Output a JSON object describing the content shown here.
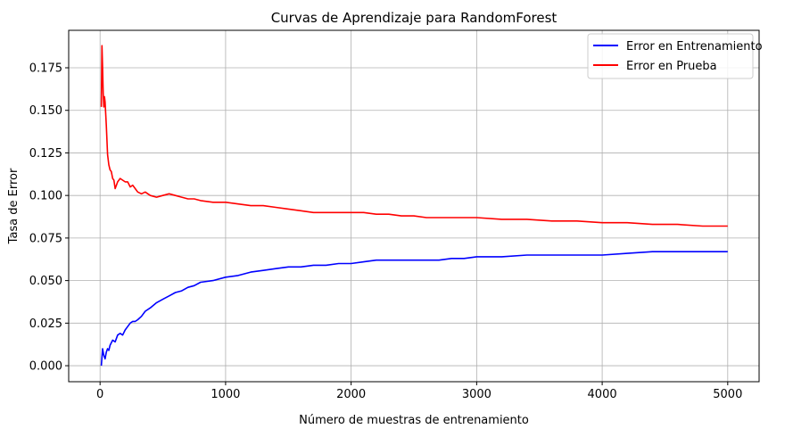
{
  "chart_data": {
    "type": "line",
    "title": "Curvas de Aprendizaje para RandomForest",
    "xlabel": "Número de muestras de entrenamiento",
    "ylabel": "Tasa de Error",
    "xlim": [
      -250,
      5250
    ],
    "ylim": [
      -0.0094,
      0.197
    ],
    "xticks": [
      0,
      1000,
      2000,
      3000,
      4000,
      5000
    ],
    "xtick_labels": [
      "0",
      "1000",
      "2000",
      "3000",
      "4000",
      "5000"
    ],
    "yticks": [
      0.0,
      0.025,
      0.05,
      0.075,
      0.1,
      0.125,
      0.15,
      0.175
    ],
    "ytick_labels": [
      "0.000",
      "0.025",
      "0.050",
      "0.075",
      "0.100",
      "0.125",
      "0.150",
      "0.175"
    ],
    "grid": true,
    "legend_position": "top-right",
    "series": [
      {
        "name": "Error en Entrenamiento",
        "color": "#0000ff",
        "x": [
          10,
          20,
          30,
          40,
          50,
          60,
          70,
          80,
          100,
          120,
          140,
          160,
          180,
          200,
          220,
          240,
          260,
          280,
          300,
          330,
          360,
          400,
          450,
          500,
          550,
          600,
          650,
          700,
          750,
          800,
          900,
          1000,
          1100,
          1200,
          1300,
          1400,
          1500,
          1600,
          1700,
          1800,
          1900,
          2000,
          2100,
          2200,
          2300,
          2400,
          2500,
          2600,
          2700,
          2800,
          2900,
          3000,
          3200,
          3400,
          3600,
          3800,
          4000,
          4200,
          4400,
          4600,
          4800,
          5000
        ],
        "y": [
          0.0,
          0.01,
          0.006,
          0.004,
          0.008,
          0.01,
          0.009,
          0.012,
          0.015,
          0.014,
          0.018,
          0.019,
          0.018,
          0.021,
          0.023,
          0.025,
          0.026,
          0.026,
          0.027,
          0.029,
          0.032,
          0.034,
          0.037,
          0.039,
          0.041,
          0.043,
          0.044,
          0.046,
          0.047,
          0.049,
          0.05,
          0.052,
          0.053,
          0.055,
          0.056,
          0.057,
          0.058,
          0.058,
          0.059,
          0.059,
          0.06,
          0.06,
          0.061,
          0.062,
          0.062,
          0.062,
          0.062,
          0.062,
          0.062,
          0.063,
          0.063,
          0.064,
          0.064,
          0.065,
          0.065,
          0.065,
          0.065,
          0.066,
          0.067,
          0.067,
          0.067,
          0.067
        ]
      },
      {
        "name": "Error en Prueba",
        "color": "#ff0000",
        "x": [
          10,
          15,
          20,
          25,
          30,
          35,
          40,
          50,
          60,
          70,
          80,
          90,
          100,
          110,
          120,
          140,
          160,
          180,
          200,
          220,
          240,
          260,
          280,
          300,
          330,
          360,
          400,
          450,
          500,
          550,
          600,
          650,
          700,
          750,
          800,
          900,
          1000,
          1100,
          1200,
          1300,
          1400,
          1500,
          1600,
          1700,
          1800,
          1900,
          2000,
          2100,
          2200,
          2300,
          2400,
          2500,
          2600,
          2700,
          2800,
          2900,
          3000,
          3200,
          3400,
          3600,
          3800,
          4000,
          4200,
          4400,
          4600,
          4800,
          5000
        ],
        "y": [
          0.152,
          0.188,
          0.175,
          0.16,
          0.152,
          0.158,
          0.155,
          0.141,
          0.124,
          0.118,
          0.115,
          0.114,
          0.11,
          0.109,
          0.104,
          0.108,
          0.11,
          0.109,
          0.108,
          0.108,
          0.105,
          0.106,
          0.104,
          0.102,
          0.101,
          0.102,
          0.1,
          0.099,
          0.1,
          0.101,
          0.1,
          0.099,
          0.098,
          0.098,
          0.097,
          0.096,
          0.096,
          0.095,
          0.094,
          0.094,
          0.093,
          0.092,
          0.091,
          0.09,
          0.09,
          0.09,
          0.09,
          0.09,
          0.089,
          0.089,
          0.088,
          0.088,
          0.087,
          0.087,
          0.087,
          0.087,
          0.087,
          0.086,
          0.086,
          0.085,
          0.085,
          0.084,
          0.084,
          0.083,
          0.083,
          0.082,
          0.082
        ]
      }
    ]
  }
}
